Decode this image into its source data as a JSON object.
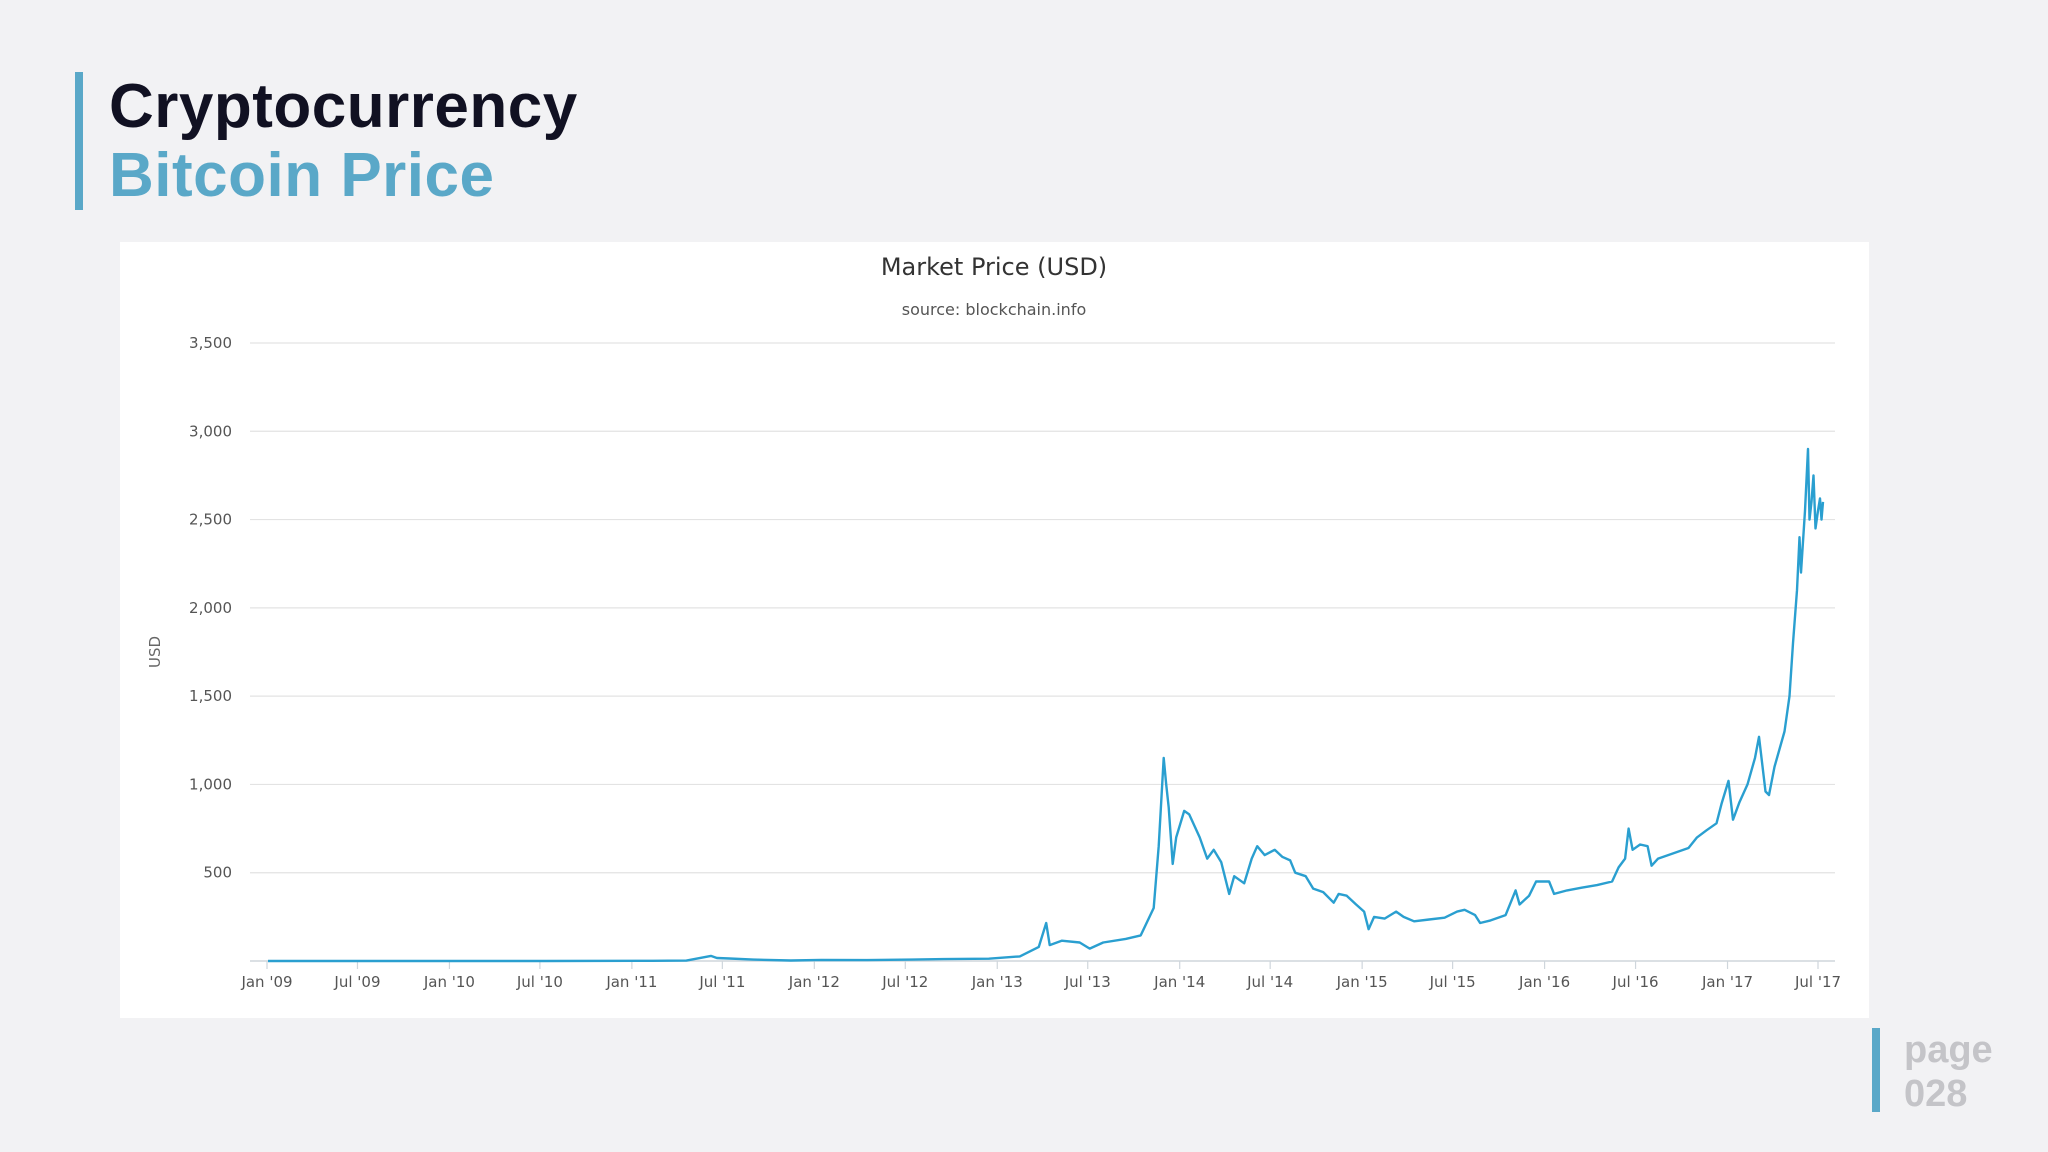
{
  "slide": {
    "title": "Cryptocurrency",
    "subtitle": "Bitcoin Price",
    "page_label": "page",
    "page_number": "028",
    "accent_color": "#5aa8c8"
  },
  "chart_data": {
    "type": "line",
    "title": "Market Price (USD)",
    "subtitle": "source: blockchain.info",
    "xlabel": "",
    "ylabel": "USD",
    "ylim": [
      0,
      3500
    ],
    "xlim": [
      "2009-01-01",
      "2017-07-01"
    ],
    "grid": true,
    "legend": "none",
    "line_color": "#2a9fd0",
    "y_ticks": [
      {
        "value": 500,
        "label": "500"
      },
      {
        "value": 1000,
        "label": "1,000"
      },
      {
        "value": 1500,
        "label": "1,500"
      },
      {
        "value": 2000,
        "label": "2,000"
      },
      {
        "value": 2500,
        "label": "2,500"
      },
      {
        "value": 3000,
        "label": "3,000"
      },
      {
        "value": 3500,
        "label": "3,500"
      }
    ],
    "x_ticks": [
      {
        "date": "2009-01-01",
        "label": "Jan '09"
      },
      {
        "date": "2009-07-01",
        "label": "Jul '09"
      },
      {
        "date": "2010-01-01",
        "label": "Jan '10"
      },
      {
        "date": "2010-07-01",
        "label": "Jul '10"
      },
      {
        "date": "2011-01-01",
        "label": "Jan '11"
      },
      {
        "date": "2011-07-01",
        "label": "Jul '11"
      },
      {
        "date": "2012-01-01",
        "label": "Jan '12"
      },
      {
        "date": "2012-07-01",
        "label": "Jul '12"
      },
      {
        "date": "2013-01-01",
        "label": "Jan '13"
      },
      {
        "date": "2013-07-01",
        "label": "Jul '13"
      },
      {
        "date": "2014-01-01",
        "label": "Jan '14"
      },
      {
        "date": "2014-07-01",
        "label": "Jul '14"
      },
      {
        "date": "2015-01-01",
        "label": "Jan '15"
      },
      {
        "date": "2015-07-01",
        "label": "Jul '15"
      },
      {
        "date": "2016-01-01",
        "label": "Jan '16"
      },
      {
        "date": "2016-07-01",
        "label": "Jul '16"
      },
      {
        "date": "2017-01-01",
        "label": "Jan '17"
      },
      {
        "date": "2017-07-01",
        "label": "Jul '17"
      }
    ],
    "series": [
      {
        "points": [
          [
            "2009-01-03",
            0
          ],
          [
            "2010-07-15",
            0
          ],
          [
            "2011-02-10",
            1
          ],
          [
            "2011-04-20",
            2
          ],
          [
            "2011-06-08",
            29
          ],
          [
            "2011-06-20",
            17
          ],
          [
            "2011-07-15",
            14
          ],
          [
            "2011-09-01",
            8
          ],
          [
            "2011-11-15",
            3
          ],
          [
            "2012-01-15",
            6
          ],
          [
            "2012-04-15",
            5
          ],
          [
            "2012-07-15",
            8
          ],
          [
            "2012-09-15",
            11
          ],
          [
            "2012-12-15",
            13
          ],
          [
            "2013-02-15",
            26
          ],
          [
            "2013-03-25",
            80
          ],
          [
            "2013-04-09",
            215
          ],
          [
            "2013-04-16",
            90
          ],
          [
            "2013-05-10",
            115
          ],
          [
            "2013-06-15",
            105
          ],
          [
            "2013-07-05",
            70
          ],
          [
            "2013-08-01",
            105
          ],
          [
            "2013-09-15",
            125
          ],
          [
            "2013-10-15",
            145
          ],
          [
            "2013-11-10",
            300
          ],
          [
            "2013-11-20",
            650
          ],
          [
            "2013-11-30",
            1150
          ],
          [
            "2013-12-05",
            1000
          ],
          [
            "2013-12-10",
            870
          ],
          [
            "2013-12-18",
            550
          ],
          [
            "2013-12-25",
            700
          ],
          [
            "2014-01-10",
            850
          ],
          [
            "2014-01-20",
            830
          ],
          [
            "2014-02-10",
            700
          ],
          [
            "2014-02-25",
            580
          ],
          [
            "2014-03-10",
            630
          ],
          [
            "2014-03-25",
            560
          ],
          [
            "2014-04-10",
            380
          ],
          [
            "2014-04-20",
            480
          ],
          [
            "2014-05-10",
            440
          ],
          [
            "2014-05-25",
            580
          ],
          [
            "2014-06-05",
            650
          ],
          [
            "2014-06-20",
            600
          ],
          [
            "2014-07-10",
            630
          ],
          [
            "2014-07-25",
            590
          ],
          [
            "2014-08-10",
            570
          ],
          [
            "2014-08-20",
            500
          ],
          [
            "2014-09-10",
            480
          ],
          [
            "2014-09-25",
            410
          ],
          [
            "2014-10-15",
            390
          ],
          [
            "2014-11-05",
            330
          ],
          [
            "2014-11-15",
            380
          ],
          [
            "2014-12-01",
            370
          ],
          [
            "2014-12-20",
            320
          ],
          [
            "2015-01-05",
            280
          ],
          [
            "2015-01-14",
            180
          ],
          [
            "2015-01-25",
            250
          ],
          [
            "2015-02-15",
            240
          ],
          [
            "2015-03-10",
            280
          ],
          [
            "2015-03-25",
            250
          ],
          [
            "2015-04-15",
            225
          ],
          [
            "2015-05-15",
            235
          ],
          [
            "2015-06-15",
            245
          ],
          [
            "2015-07-10",
            280
          ],
          [
            "2015-07-25",
            290
          ],
          [
            "2015-08-15",
            260
          ],
          [
            "2015-08-25",
            215
          ],
          [
            "2015-09-15",
            230
          ],
          [
            "2015-10-15",
            260
          ],
          [
            "2015-11-04",
            400
          ],
          [
            "2015-11-12",
            320
          ],
          [
            "2015-12-01",
            370
          ],
          [
            "2015-12-15",
            450
          ],
          [
            "2016-01-10",
            450
          ],
          [
            "2016-01-20",
            380
          ],
          [
            "2016-02-15",
            400
          ],
          [
            "2016-03-15",
            415
          ],
          [
            "2016-04-15",
            430
          ],
          [
            "2016-05-15",
            450
          ],
          [
            "2016-05-28",
            530
          ],
          [
            "2016-06-10",
            580
          ],
          [
            "2016-06-17",
            750
          ],
          [
            "2016-06-25",
            630
          ],
          [
            "2016-07-10",
            660
          ],
          [
            "2016-07-25",
            650
          ],
          [
            "2016-08-02",
            540
          ],
          [
            "2016-08-15",
            580
          ],
          [
            "2016-09-15",
            610
          ],
          [
            "2016-10-15",
            640
          ],
          [
            "2016-11-01",
            700
          ],
          [
            "2016-11-20",
            740
          ],
          [
            "2016-12-10",
            780
          ],
          [
            "2016-12-20",
            890
          ],
          [
            "2017-01-03",
            1020
          ],
          [
            "2017-01-12",
            800
          ],
          [
            "2017-01-25",
            900
          ],
          [
            "2017-02-10",
            1000
          ],
          [
            "2017-02-25",
            1150
          ],
          [
            "2017-03-05",
            1270
          ],
          [
            "2017-03-18",
            960
          ],
          [
            "2017-03-25",
            940
          ],
          [
            "2017-04-05",
            1100
          ],
          [
            "2017-04-25",
            1300
          ],
          [
            "2017-05-05",
            1500
          ],
          [
            "2017-05-12",
            1800
          ],
          [
            "2017-05-20",
            2100
          ],
          [
            "2017-05-25",
            2400
          ],
          [
            "2017-05-28",
            2200
          ],
          [
            "2017-06-05",
            2550
          ],
          [
            "2017-06-11",
            2900
          ],
          [
            "2017-06-14",
            2500
          ],
          [
            "2017-06-18",
            2600
          ],
          [
            "2017-06-22",
            2750
          ],
          [
            "2017-06-26",
            2450
          ],
          [
            "2017-07-01",
            2550
          ],
          [
            "2017-07-05",
            2620
          ],
          [
            "2017-07-08",
            2500
          ],
          [
            "2017-07-11",
            2600
          ]
        ]
      }
    ]
  }
}
